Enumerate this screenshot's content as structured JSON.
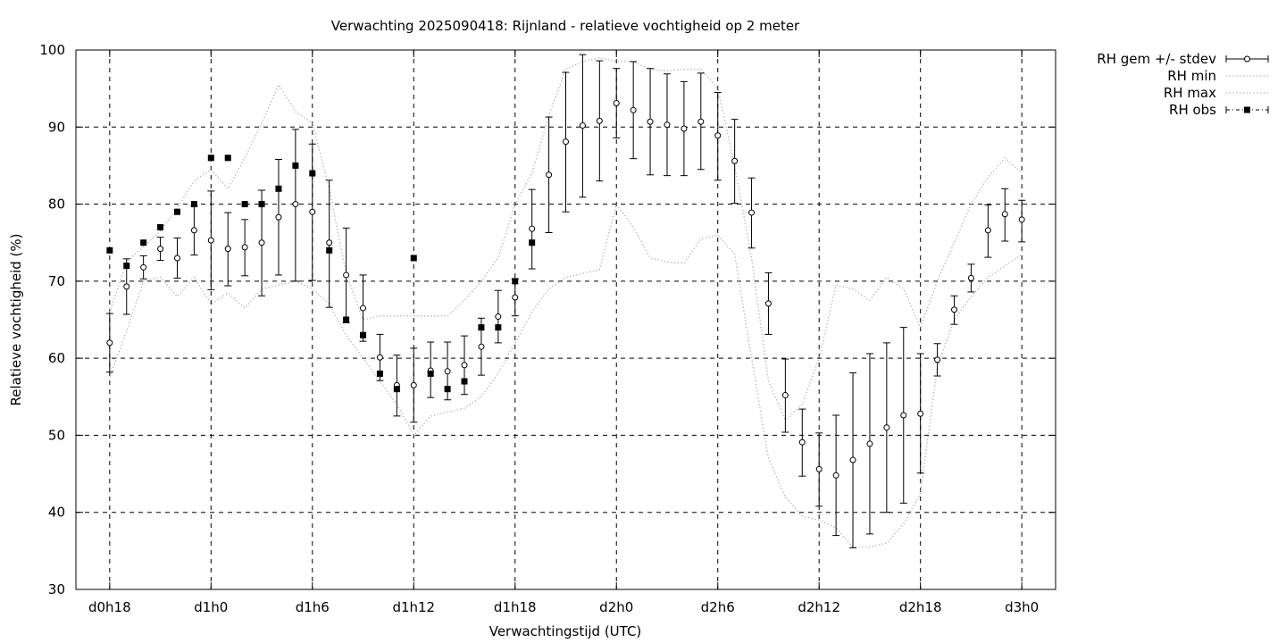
{
  "chart_data": {
    "type": "line",
    "title": "Verwachting 2025090418: Rijnland - relatieve vochtigheid op 2 meter",
    "xlabel": "Verwachtingstijd (UTC)",
    "ylabel": "Relatieve vochtigheid (%)",
    "xlim": [
      -2,
      56
    ],
    "ylim": [
      30,
      100
    ],
    "yticks": [
      30,
      40,
      50,
      60,
      70,
      80,
      90,
      100
    ],
    "xticks": [
      {
        "x": 0,
        "label": "d0h18"
      },
      {
        "x": 6,
        "label": "d1h0"
      },
      {
        "x": 12,
        "label": "d1h6"
      },
      {
        "x": 18,
        "label": "d1h12"
      },
      {
        "x": 24,
        "label": "d1h18"
      },
      {
        "x": 30,
        "label": "d2h0"
      },
      {
        "x": 36,
        "label": "d2h6"
      },
      {
        "x": 42,
        "label": "d2h12"
      },
      {
        "x": 48,
        "label": "d2h18"
      },
      {
        "x": 54,
        "label": "d3h0"
      }
    ],
    "grid": true,
    "legend_position": "outside-top-right",
    "series": [
      {
        "name": "RH gem +/- stdev",
        "style": "errorbars",
        "x": [
          0,
          1,
          2,
          3,
          4,
          5,
          6,
          7,
          8,
          9,
          10,
          11,
          12,
          13,
          14,
          15,
          16,
          17,
          18,
          19,
          20,
          21,
          22,
          23,
          24,
          25,
          26,
          27,
          28,
          29,
          30,
          31,
          32,
          33,
          34,
          35,
          36,
          37,
          38,
          39,
          40,
          41,
          42,
          43,
          44,
          45,
          46,
          47,
          48,
          49,
          50,
          51,
          52,
          53,
          54
        ],
        "mean": [
          62,
          69.3,
          71.8,
          74.2,
          73,
          76.6,
          75.3,
          74.2,
          74.4,
          75,
          78.3,
          80,
          79,
          75,
          70.8,
          66.5,
          60.1,
          56.5,
          56.5,
          58.4,
          58.3,
          59.1,
          61.5,
          65.4,
          67.9,
          76.8,
          83.8,
          88.1,
          90.2,
          90.8,
          93.1,
          92.2,
          90.7,
          90.3,
          89.8,
          90.7,
          88.9,
          85.6,
          78.9,
          67.1,
          55.2,
          49.1,
          45.6,
          44.8,
          46.8,
          48.9,
          51,
          52.6,
          52.8,
          59.8,
          66.3,
          70.4,
          76.6,
          78.7,
          78
        ],
        "lower": [
          58.2,
          65.7,
          70.3,
          72.7,
          70.4,
          73.4,
          68.9,
          69.4,
          70.7,
          68.1,
          70.8,
          70,
          70.1,
          66.6,
          64.6,
          62.2,
          57.1,
          52.5,
          51.7,
          54.9,
          54.6,
          55.3,
          57.8,
          62,
          65.5,
          71.6,
          76.3,
          79,
          80.9,
          83,
          88.6,
          85.9,
          83.8,
          83.7,
          83.7,
          84.5,
          83.1,
          80.1,
          74.3,
          63.1,
          50.4,
          44.7,
          40.8,
          37,
          35.4,
          37.2,
          40,
          41.2,
          45.1,
          57.7,
          64.4,
          68.6,
          73.1,
          75.2,
          75.1
        ],
        "upper": [
          65.8,
          72.9,
          73.3,
          75.7,
          75.6,
          79.8,
          81.7,
          78.9,
          78,
          81.8,
          85.8,
          89.7,
          87.8,
          83.1,
          76.9,
          70.8,
          63.1,
          60.4,
          61.3,
          62.1,
          62.1,
          62.9,
          65.2,
          68.8,
          70.3,
          81.9,
          91.3,
          97.1,
          99.4,
          98.6,
          97.6,
          98.5,
          97.6,
          96.9,
          95.9,
          97,
          94.5,
          91,
          83.4,
          71.1,
          59.9,
          53.4,
          50.3,
          52.6,
          58.1,
          60.6,
          62,
          64,
          60.6,
          61.9,
          68.1,
          72.2,
          79.9,
          82,
          80.5
        ],
        "color": "#000000"
      },
      {
        "name": "RH min",
        "style": "dotted",
        "x": [
          0,
          1,
          2,
          3,
          4,
          5,
          6,
          7,
          8,
          9,
          10,
          11,
          12,
          13,
          14,
          15,
          16,
          17,
          18,
          19,
          20,
          21,
          22,
          23,
          24,
          25,
          26,
          27,
          28,
          29,
          30,
          31,
          32,
          33,
          34,
          35,
          36,
          37,
          38,
          39,
          40,
          41,
          42,
          43,
          44,
          45,
          46,
          47,
          48,
          49,
          50,
          51,
          52,
          53,
          54
        ],
        "values": [
          57.5,
          63.5,
          70,
          70.5,
          68,
          70.5,
          67,
          68.5,
          66.5,
          69,
          69.5,
          70,
          69,
          67,
          63,
          60,
          57,
          54,
          50,
          52.5,
          53,
          53.5,
          55,
          58,
          62,
          66,
          69,
          70.5,
          71,
          71.5,
          80,
          77,
          73,
          72.5,
          72.3,
          75.5,
          76,
          73.5,
          60,
          47,
          42,
          39.5,
          39,
          38,
          35.5,
          35.5,
          36,
          38.5,
          42.5,
          59,
          65,
          68,
          70.5,
          72,
          73.5
        ],
        "color": "#aaaaaa"
      },
      {
        "name": "RH max",
        "style": "dotted",
        "x": [
          0,
          1,
          2,
          3,
          4,
          5,
          6,
          7,
          8,
          9,
          10,
          11,
          12,
          13,
          14,
          15,
          16,
          17,
          18,
          19,
          20,
          21,
          22,
          23,
          24,
          25,
          26,
          27,
          28,
          29,
          30,
          31,
          32,
          33,
          34,
          35,
          36,
          37,
          38,
          39,
          40,
          41,
          42,
          43,
          44,
          45,
          46,
          47,
          48,
          49,
          50,
          51,
          52,
          53,
          54
        ],
        "values": [
          66,
          72.5,
          74.5,
          76.5,
          79.5,
          83,
          84.5,
          82,
          86,
          90.5,
          95.5,
          92,
          90.5,
          82,
          71,
          65,
          65.5,
          65.5,
          65.5,
          65.5,
          65.5,
          67.5,
          70,
          73,
          80,
          84,
          91.5,
          97.5,
          98.5,
          99,
          98.5,
          98.5,
          97.5,
          97.3,
          97.5,
          97.5,
          95,
          85,
          73,
          57,
          52,
          54,
          60,
          69.5,
          69,
          67.5,
          70.5,
          69,
          64,
          70,
          75,
          80,
          83.5,
          86,
          84
        ],
        "color": "#aaaaaa"
      },
      {
        "name": "RH obs",
        "style": "points",
        "x": [
          0,
          1,
          2,
          3,
          4,
          5,
          6,
          7,
          8,
          9,
          10,
          11,
          12,
          13,
          14,
          15,
          16,
          17,
          18,
          19,
          20,
          21,
          22,
          23,
          24,
          25
        ],
        "values": [
          74,
          72,
          75,
          77,
          79,
          80,
          86,
          86,
          80,
          80,
          82,
          85,
          84,
          74,
          65,
          63,
          58,
          56,
          73,
          58,
          56,
          57,
          64,
          64,
          70,
          75
        ],
        "color": "#000000"
      }
    ]
  }
}
